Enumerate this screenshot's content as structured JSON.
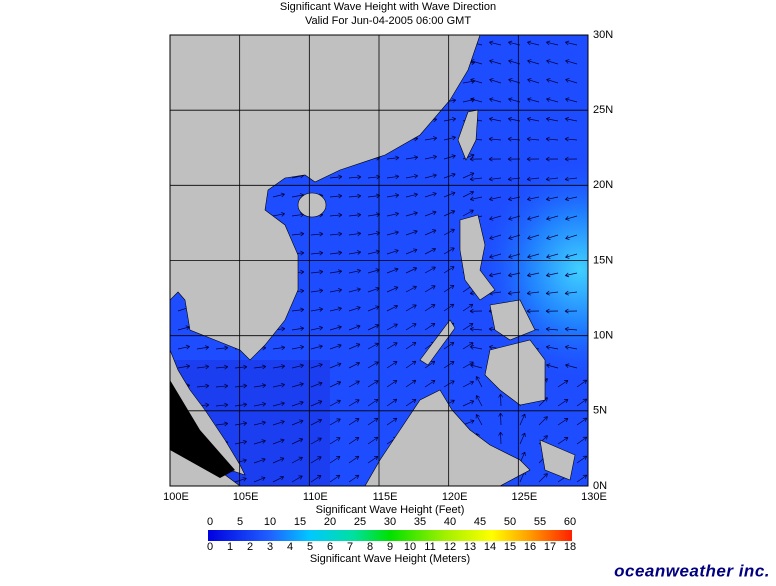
{
  "header": {
    "title": "Significant Wave Height with Wave Direction",
    "subtitle": "Valid For Jun-04-2005 06:00 GMT"
  },
  "map": {
    "lat_labels": [
      "30N",
      "25N",
      "20N",
      "15N",
      "10N",
      "5N",
      "0N"
    ],
    "lon_labels": [
      "100E",
      "105E",
      "110E",
      "115E",
      "120E",
      "125E",
      "130E"
    ]
  },
  "colorbar": {
    "feet_label": "Significant Wave Height (Feet)",
    "feet_ticks": [
      0,
      5,
      10,
      15,
      20,
      25,
      30,
      35,
      40,
      45,
      50,
      55,
      60
    ],
    "meters_label": "Significant Wave Height (Meters)",
    "meters_ticks": [
      0,
      1,
      2,
      3,
      4,
      5,
      6,
      7,
      8,
      9,
      10,
      11,
      12,
      13,
      14,
      15,
      16,
      17,
      18
    ]
  },
  "logo": "oceanweather inc."
}
